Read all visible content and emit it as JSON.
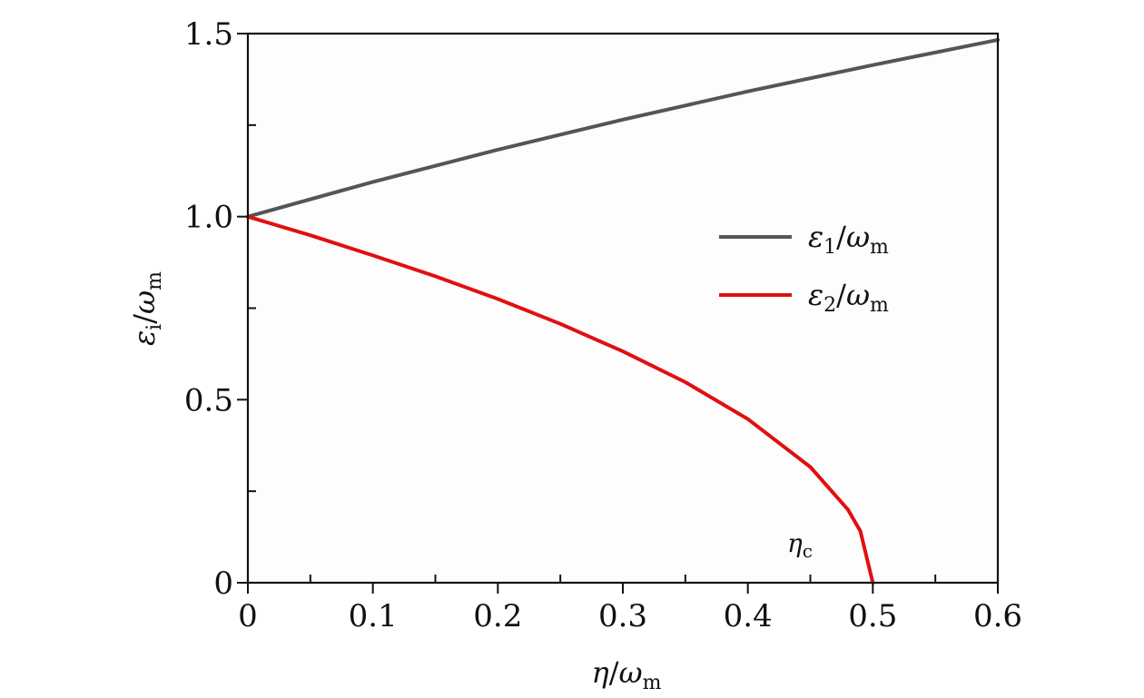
{
  "chart_data": {
    "type": "line",
    "title": "",
    "xlabel": "η/ω_m",
    "ylabel": "ε_i/ω_m",
    "xlim": [
      0,
      0.6
    ],
    "ylim": [
      0,
      1.5
    ],
    "x_ticks": [
      0,
      0.1,
      0.2,
      0.3,
      0.4,
      0.5,
      0.6
    ],
    "x_tick_labels": [
      "0",
      "0.1",
      "0.2",
      "0.3",
      "0.4",
      "0.5",
      "0.6"
    ],
    "y_ticks": [
      0,
      0.5,
      1.0,
      1.5
    ],
    "y_tick_labels": [
      "0",
      "0.5",
      "1.0",
      "1.5"
    ],
    "grid": false,
    "legend_position": "right",
    "series": [
      {
        "name": "ε_1/ω_m",
        "color": "#555555",
        "x": [
          0,
          0.1,
          0.2,
          0.3,
          0.4,
          0.5,
          0.6
        ],
        "y": [
          1.0,
          1.095,
          1.183,
          1.265,
          1.342,
          1.414,
          1.483
        ]
      },
      {
        "name": "ε_2/ω_m",
        "color": "#e01010",
        "x": [
          0,
          0.05,
          0.1,
          0.15,
          0.2,
          0.25,
          0.3,
          0.35,
          0.4,
          0.45,
          0.48,
          0.49,
          0.5
        ],
        "y": [
          1.0,
          0.949,
          0.894,
          0.837,
          0.775,
          0.707,
          0.632,
          0.548,
          0.447,
          0.316,
          0.2,
          0.141,
          0.0
        ]
      }
    ],
    "annotations": [
      {
        "text": "η_c",
        "x": 0.465,
        "y": 0.1
      }
    ]
  }
}
